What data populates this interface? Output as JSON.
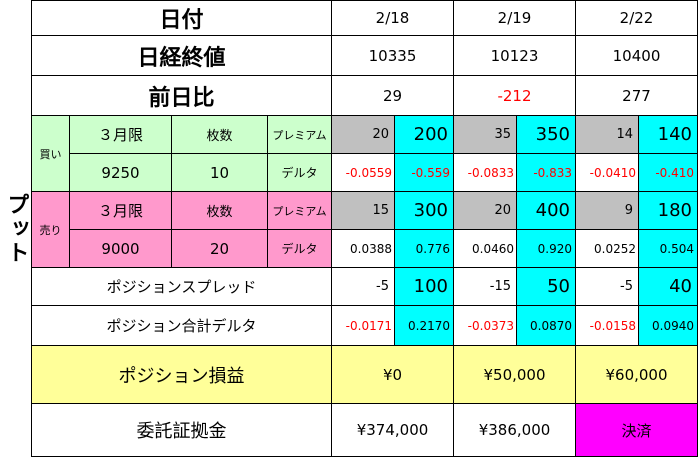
{
  "side_label": "プット",
  "labels": {
    "date": "日付",
    "close": "日経終値",
    "change": "前日比",
    "buy": "買い",
    "sell": "売り",
    "month": "３月限",
    "qty": "枚数",
    "premium": "プレミアム",
    "delta": "デルタ",
    "spread": "ポジションスプレッド",
    "pos_delta": "ポジション合計デルタ",
    "pnl": "ポジション損益",
    "margin": "委託証拠金"
  },
  "buy_leg": {
    "strike": "9250",
    "qty": "10"
  },
  "sell_leg": {
    "strike": "9000",
    "qty": "20"
  },
  "columns": [
    {
      "date": "2/18",
      "close": "10335",
      "change": "29",
      "buy_premium": "20",
      "buy_premium_total": "200",
      "buy_delta": "-0.0559",
      "buy_delta_total": "-0.559",
      "sell_premium": "15",
      "sell_premium_total": "300",
      "sell_delta": "0.0388",
      "sell_delta_total": "0.776",
      "spread": "-5",
      "spread_total": "100",
      "pos_delta": "-0.0171",
      "pos_delta_total": "0.2170",
      "pnl": "¥0",
      "margin": "¥374,000"
    },
    {
      "date": "2/19",
      "close": "10123",
      "change": "-212",
      "buy_premium": "35",
      "buy_premium_total": "350",
      "buy_delta": "-0.0833",
      "buy_delta_total": "-0.833",
      "sell_premium": "20",
      "sell_premium_total": "400",
      "sell_delta": "0.0460",
      "sell_delta_total": "0.920",
      "spread": "-15",
      "spread_total": "50",
      "pos_delta": "-0.0373",
      "pos_delta_total": "0.0870",
      "pnl": "¥50,000",
      "margin": "¥386,000"
    },
    {
      "date": "2/22",
      "close": "10400",
      "change": "277",
      "buy_premium": "14",
      "buy_premium_total": "140",
      "buy_delta": "-0.0410",
      "buy_delta_total": "-0.410",
      "sell_premium": "9",
      "sell_premium_total": "180",
      "sell_delta": "0.0252",
      "sell_delta_total": "0.504",
      "spread": "-5",
      "spread_total": "40",
      "pos_delta": "-0.0158",
      "pos_delta_total": "0.0940",
      "pnl": "¥60,000",
      "margin": "決済"
    }
  ],
  "colors": {
    "buy_bg": "#ccffcc",
    "sell_bg": "#ff99cc",
    "premium_bg": "#c0c0c0",
    "total_bg": "#00ffff",
    "pnl_bg": "#ffff99",
    "settled_bg": "#ff00ff",
    "negative_text": "#ff0000"
  }
}
